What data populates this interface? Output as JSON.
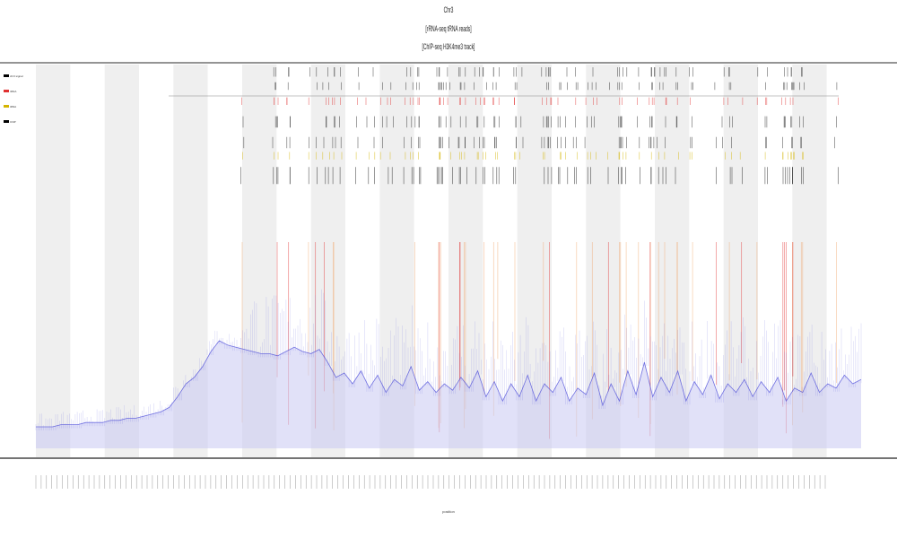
{
  "chart": {
    "title_lines": [
      "Chr3",
      "[rRNA-seq tRNA reads]",
      "[ChIP-seq H3K4me3 track]"
    ],
    "xlabel": "position",
    "ylabel": ""
  },
  "chart_data": {
    "type": "area",
    "title": "",
    "xlabel": "position",
    "ylabel": "",
    "legend_placement": "left",
    "legend": [
      {
        "name": "chr3 signal",
        "color": "#000000"
      },
      {
        "name": "rRNA",
        "color": "#e03030"
      },
      {
        "name": "tRNA",
        "color": "#d4b400"
      },
      {
        "name": "ChIP",
        "color": "#000000"
      }
    ],
    "bands": {
      "count": 12,
      "color": "#efefef"
    },
    "x_ticks_count": 150,
    "coverage": {
      "name": "coverage",
      "color": "#3b3bd6",
      "x_start": 0,
      "x_end": 1,
      "values": [
        0.1,
        0.1,
        0.1,
        0.11,
        0.11,
        0.11,
        0.12,
        0.12,
        0.12,
        0.13,
        0.13,
        0.14,
        0.14,
        0.15,
        0.16,
        0.17,
        0.19,
        0.24,
        0.3,
        0.33,
        0.38,
        0.45,
        0.5,
        0.48,
        0.47,
        0.46,
        0.45,
        0.44,
        0.44,
        0.43,
        0.45,
        0.47,
        0.45,
        0.44,
        0.46,
        0.4,
        0.33,
        0.35,
        0.3,
        0.36,
        0.28,
        0.34,
        0.26,
        0.32,
        0.29,
        0.38,
        0.27,
        0.31,
        0.26,
        0.3,
        0.27,
        0.33,
        0.28,
        0.36,
        0.24,
        0.31,
        0.22,
        0.3,
        0.24,
        0.34,
        0.22,
        0.3,
        0.26,
        0.33,
        0.22,
        0.28,
        0.25,
        0.35,
        0.2,
        0.3,
        0.22,
        0.36,
        0.25,
        0.4,
        0.24,
        0.33,
        0.26,
        0.36,
        0.22,
        0.31,
        0.25,
        0.34,
        0.23,
        0.3,
        0.26,
        0.32,
        0.24,
        0.31,
        0.26,
        0.33,
        0.22,
        0.28,
        0.26,
        0.35,
        0.26,
        0.3,
        0.28,
        0.34,
        0.3,
        0.32
      ]
    }
  },
  "tracks": [
    {
      "name": "black-ticks-row-1",
      "color": "#222222",
      "y0": 0.0,
      "y1": 0.05
    },
    {
      "name": "black-ticks-row-2",
      "color": "#222222",
      "y0": 0.08,
      "y1": 0.12
    },
    {
      "name": "red-ticks-row",
      "color": "#e03030",
      "y0": 0.16,
      "y1": 0.2
    },
    {
      "name": "black-ticks-row-3",
      "color": "#222222",
      "y0": 0.26,
      "y1": 0.32
    },
    {
      "name": "black-ticks-row-4",
      "color": "#222222",
      "y0": 0.37,
      "y1": 0.43
    },
    {
      "name": "yellow-ticks-row",
      "color": "#d4b400",
      "y0": 0.45,
      "y1": 0.49
    },
    {
      "name": "dark-ticks-row",
      "color": "#111111",
      "y0": 0.53,
      "y1": 0.62
    }
  ]
}
